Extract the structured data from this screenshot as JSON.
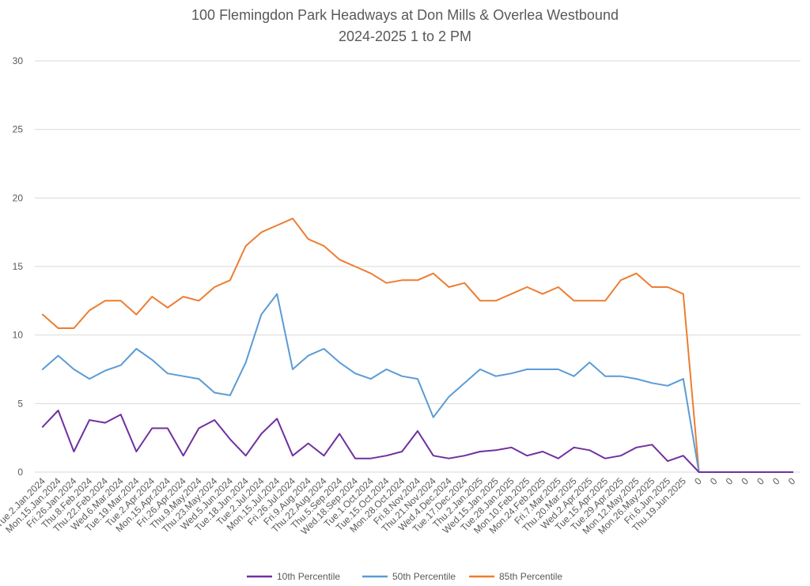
{
  "chart_data": {
    "type": "line",
    "title": "100 Flemingdon Park Headways at Don Mills & Overlea Westbound",
    "subtitle": "2024-2025 1 to 2 PM",
    "xlabel": "",
    "ylabel": "",
    "ylim": [
      0,
      30
    ],
    "yticks": [
      0,
      5,
      10,
      15,
      20,
      25,
      30
    ],
    "grid": true,
    "legend_position": "bottom",
    "categories": [
      "Tue.2.Jan.2024",
      "Mon.15.Jan.2024",
      "Fri.26.Jan.2024",
      "Thu.8.Feb.2024",
      "Thu.22.Feb.2024",
      "Wed.6.Mar.2024",
      "Tue.19.Mar.2024",
      "Tue.2.Apr.2024",
      "Mon.15.Apr.2024",
      "Fri.26.Apr.2024",
      "Thu.9.May.2024",
      "Thu.23.May.2024",
      "Wed.5.Jun.2024",
      "Tue.18.Jun.2024",
      "Tue.2.Jul.2024",
      "Mon.15.Jul.2024",
      "Fri.26.Jul.2024",
      "Fri.9.Aug.2024",
      "Thu.22.Aug.2024",
      "Thu.5.Sep.2024",
      "Wed.18.Sep.2024",
      "Tue.1.Oct.2024",
      "Tue.15.Oct.2024",
      "Mon.28.Oct.2024",
      "Fri.8.Nov.2024",
      "Thu.21.Nov.2024",
      "Wed.4.Dec.2024",
      "Tue.17.Dec.2024",
      "Thu.2.Jan.2025",
      "Wed.15.Jan.2025",
      "Tue.28.Jan.2025",
      "Mon.10.Feb.2025",
      "Mon.24.Feb.2025",
      "Fri.7.Mar.2025",
      "Thu.20.Mar.2025",
      "Wed.2.Apr.2025",
      "Tue.15.Apr.2025",
      "Tue.29.Apr.2025",
      "Mon.12.May.2025",
      "Mon.26.May.2025",
      "Fri.6.Jun.2025",
      "Thu.19.Jun.2025",
      "0",
      "0",
      "0",
      "0",
      "0",
      "0",
      "0"
    ],
    "series": [
      {
        "name": "10th Percentile",
        "color": "#7030a0",
        "values": [
          3.3,
          4.5,
          1.5,
          3.8,
          3.6,
          4.2,
          1.5,
          3.2,
          3.2,
          1.2,
          3.2,
          3.8,
          2.4,
          1.2,
          2.8,
          3.9,
          1.2,
          2.1,
          1.2,
          2.8,
          1.0,
          1.0,
          1.2,
          1.5,
          3.0,
          1.2,
          1.0,
          1.2,
          1.5,
          1.6,
          1.8,
          1.2,
          1.5,
          1.0,
          1.8,
          1.6,
          1.0,
          1.2,
          1.8,
          2.0,
          0.8,
          1.2,
          0,
          0,
          0,
          0,
          0,
          0,
          0
        ]
      },
      {
        "name": "50th Percentile",
        "color": "#5b9bd5",
        "values": [
          7.5,
          8.5,
          7.5,
          6.8,
          7.4,
          7.8,
          9.0,
          8.2,
          7.2,
          7.0,
          6.8,
          5.8,
          5.6,
          8.0,
          11.5,
          13.0,
          7.5,
          8.5,
          9.0,
          8.0,
          7.2,
          6.8,
          7.5,
          7.0,
          6.8,
          4.0,
          5.5,
          6.5,
          7.5,
          7.0,
          7.2,
          7.5,
          7.5,
          7.5,
          7.0,
          8.0,
          7.0,
          7.0,
          6.8,
          6.5,
          6.3,
          6.8,
          0,
          0,
          0,
          0,
          0,
          0,
          0
        ]
      },
      {
        "name": "85th Percentile",
        "color": "#ed7d31",
        "values": [
          11.5,
          10.5,
          10.5,
          11.8,
          12.5,
          12.5,
          11.5,
          12.8,
          12.0,
          12.8,
          12.5,
          13.5,
          14.0,
          16.5,
          17.5,
          18.0,
          18.5,
          17.0,
          16.5,
          15.5,
          15.0,
          14.5,
          13.8,
          14.0,
          14.0,
          14.5,
          13.5,
          13.8,
          12.5,
          12.5,
          13.0,
          13.5,
          13.0,
          13.5,
          12.5,
          12.5,
          12.5,
          14.0,
          14.5,
          13.5,
          13.5,
          13.0,
          0,
          0,
          0,
          0,
          0,
          0,
          0
        ]
      }
    ]
  }
}
